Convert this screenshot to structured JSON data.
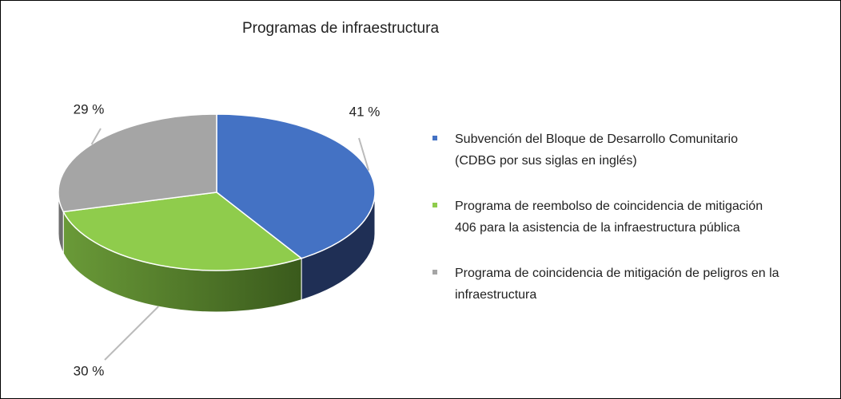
{
  "chart_data": {
    "type": "pie",
    "title": "Programas de infraestructura",
    "categories": [
      "Subvención del Bloque de Desarrollo Comunitario\n(CDBG por sus siglas en inglés)",
      "Programa de reembolso de coincidencia de mitigación\n406 para la asistencia de la infraestructura pública",
      "Programa de coincidencia de mitigación de peligros en la\ninfraestructura"
    ],
    "values": [
      41,
      30,
      29
    ],
    "value_labels": [
      "41 %",
      "30 %",
      "29 %"
    ],
    "colors": [
      "#4472c4",
      "#8fcc4c",
      "#a5a5a5"
    ],
    "legend": "right"
  }
}
